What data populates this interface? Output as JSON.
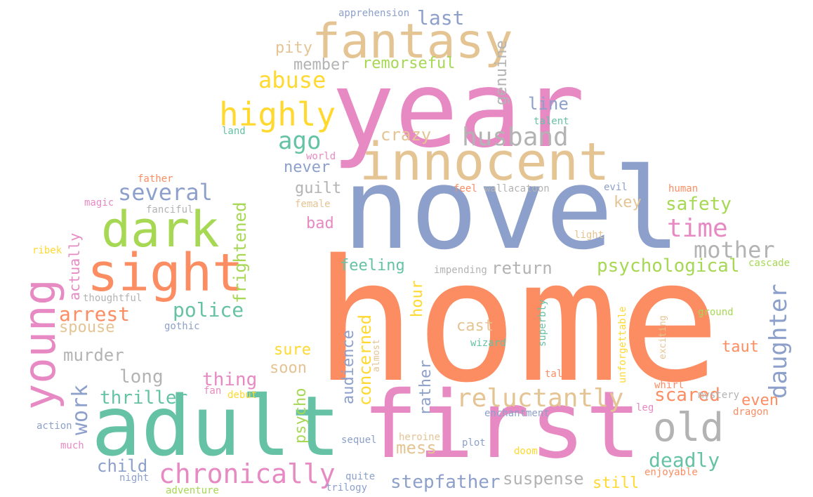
{
  "words": [
    {
      "text": "home",
      "color": "#fc8d62"
    },
    {
      "text": "novel",
      "color": "#8da0cb"
    },
    {
      "text": "year",
      "color": "#e78ac3"
    },
    {
      "text": "first",
      "color": "#e78ac3"
    },
    {
      "text": "adult",
      "color": "#66c2a5"
    },
    {
      "text": "innocent",
      "color": "#e5c494"
    },
    {
      "text": "fantasy",
      "color": "#e5c494"
    },
    {
      "text": "sight",
      "color": "#fc8d62"
    },
    {
      "text": "dark",
      "color": "#a6d854"
    },
    {
      "text": "young",
      "color": "#e78ac3"
    },
    {
      "text": "highly",
      "color": "#ffd92f"
    },
    {
      "text": "old",
      "color": "#b3b3b3"
    },
    {
      "text": "reluctantly",
      "color": "#e5c494"
    },
    {
      "text": "chronically",
      "color": "#e78ac3"
    },
    {
      "text": "husband",
      "color": "#b3b3b3"
    },
    {
      "text": "daughter",
      "color": "#8da0cb"
    },
    {
      "text": "several",
      "color": "#8da0cb"
    },
    {
      "text": "mother",
      "color": "#b3b3b3"
    },
    {
      "text": "time",
      "color": "#e78ac3"
    },
    {
      "text": "abuse",
      "color": "#ffd92f"
    },
    {
      "text": "ago",
      "color": "#66c2a5"
    },
    {
      "text": "last",
      "color": "#8da0cb"
    },
    {
      "text": "work",
      "color": "#8da0cb"
    },
    {
      "text": "police",
      "color": "#66c2a5"
    },
    {
      "text": "arrest",
      "color": "#fc8d62"
    },
    {
      "text": "psychological",
      "color": "#a6d854"
    },
    {
      "text": "thriller",
      "color": "#66c2a5"
    },
    {
      "text": "stepfather",
      "color": "#8da0cb"
    },
    {
      "text": "deadly",
      "color": "#66c2a5"
    },
    {
      "text": "scared",
      "color": "#fc8d62"
    },
    {
      "text": "safety",
      "color": "#a6d854"
    },
    {
      "text": "suspense",
      "color": "#b3b3b3"
    },
    {
      "text": "concerned",
      "color": "#ffd92f"
    },
    {
      "text": "audience",
      "color": "#8da0cb"
    },
    {
      "text": "frightened",
      "color": "#a6d854"
    },
    {
      "text": "genuine",
      "color": "#b3b3b3"
    },
    {
      "text": "mess",
      "color": "#e5c494"
    },
    {
      "text": "thing",
      "color": "#e78ac3"
    },
    {
      "text": "long",
      "color": "#b3b3b3"
    },
    {
      "text": "murder",
      "color": "#b3b3b3"
    },
    {
      "text": "child",
      "color": "#8da0cb"
    },
    {
      "text": "spouse",
      "color": "#e5c494"
    },
    {
      "text": "feeling",
      "color": "#66c2a5"
    },
    {
      "text": "return",
      "color": "#b3b3b3"
    },
    {
      "text": "remorseful",
      "color": "#a6d854"
    },
    {
      "text": "member",
      "color": "#b3b3b3"
    },
    {
      "text": "crazy",
      "color": "#e5c494"
    },
    {
      "text": "line",
      "color": "#8da0cb"
    },
    {
      "text": "never",
      "color": "#8da0cb"
    },
    {
      "text": "guilt",
      "color": "#b3b3b3"
    },
    {
      "text": "bad",
      "color": "#e78ac3"
    },
    {
      "text": "key",
      "color": "#e5c494"
    },
    {
      "text": "cast",
      "color": "#e5c494"
    },
    {
      "text": "taut",
      "color": "#fc8d62"
    },
    {
      "text": "even",
      "color": "#fc8d62"
    },
    {
      "text": "still",
      "color": "#ffd92f"
    },
    {
      "text": "sure",
      "color": "#ffd92f"
    },
    {
      "text": "soon",
      "color": "#e5c494"
    },
    {
      "text": "pity",
      "color": "#e5c494"
    },
    {
      "text": "rather",
      "color": "#8da0cb"
    },
    {
      "text": "psycho",
      "color": "#a6d854"
    },
    {
      "text": "hour",
      "color": "#ffd92f"
    },
    {
      "text": "actually",
      "color": "#e78ac3"
    },
    {
      "text": "apprehension",
      "color": "#8da0cb"
    },
    {
      "text": "talent",
      "color": "#66c2a5"
    },
    {
      "text": "land",
      "color": "#66c2a5"
    },
    {
      "text": "world",
      "color": "#e78ac3"
    },
    {
      "text": "feel",
      "color": "#fc8d62"
    },
    {
      "text": "wallacatoon",
      "color": "#b3b3b3"
    },
    {
      "text": "evil",
      "color": "#8da0cb"
    },
    {
      "text": "human",
      "color": "#fc8d62"
    },
    {
      "text": "female",
      "color": "#e5c494"
    },
    {
      "text": "light",
      "color": "#e5c494"
    },
    {
      "text": "impending",
      "color": "#b3b3b3"
    },
    {
      "text": "cascade",
      "color": "#a6d854"
    },
    {
      "text": "father",
      "color": "#fc8d62"
    },
    {
      "text": "magic",
      "color": "#e78ac3"
    },
    {
      "text": "fanciful",
      "color": "#b3b3b3"
    },
    {
      "text": "ribek",
      "color": "#ffd92f"
    },
    {
      "text": "thoughtful",
      "color": "#b3b3b3"
    },
    {
      "text": "gothic",
      "color": "#8da0cb"
    },
    {
      "text": "ground",
      "color": "#a6d854"
    },
    {
      "text": "exciting",
      "color": "#e5c494"
    },
    {
      "text": "unforgettable",
      "color": "#ffd92f"
    },
    {
      "text": "superbly",
      "color": "#66c2a5"
    },
    {
      "text": "wizard",
      "color": "#66c2a5"
    },
    {
      "text": "almost",
      "color": "#e5c494"
    },
    {
      "text": "tale",
      "color": "#fc8d62"
    },
    {
      "text": "whirl",
      "color": "#fc8d62"
    },
    {
      "text": "mystery",
      "color": "#b3b3b3"
    },
    {
      "text": "leg",
      "color": "#e78ac3"
    },
    {
      "text": "dragon",
      "color": "#fc8d62"
    },
    {
      "text": "enchantment",
      "color": "#8da0cb"
    },
    {
      "text": "fan",
      "color": "#e78ac3"
    },
    {
      "text": "debut",
      "color": "#ffd92f"
    },
    {
      "text": "action",
      "color": "#8da0cb"
    },
    {
      "text": "much",
      "color": "#e78ac3"
    },
    {
      "text": "night",
      "color": "#8da0cb"
    },
    {
      "text": "adventure",
      "color": "#a6d854"
    },
    {
      "text": "sequel",
      "color": "#8da0cb"
    },
    {
      "text": "heroine",
      "color": "#e5c494"
    },
    {
      "text": "plot",
      "color": "#8da0cb"
    },
    {
      "text": "doom",
      "color": "#ffd92f"
    },
    {
      "text": "quite",
      "color": "#8da0cb"
    },
    {
      "text": "trilogy",
      "color": "#8da0cb"
    },
    {
      "text": "enjoyable",
      "color": "#fc8d62"
    }
  ]
}
